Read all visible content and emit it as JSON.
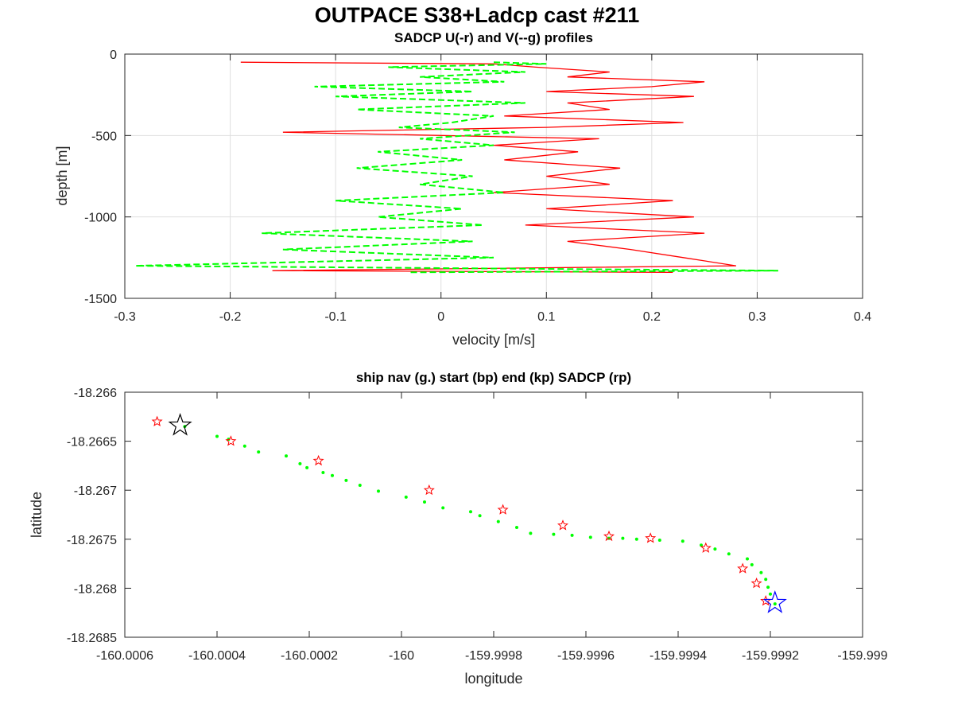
{
  "figure": {
    "title": "OUTPACE S38+Ladcp cast #211"
  },
  "chart_data": [
    {
      "type": "line",
      "title": "SADCP U(-r) and V(--g) profiles",
      "xlabel": "velocity [m/s]",
      "ylabel": "depth [m]",
      "xlim": [
        -0.3,
        0.4
      ],
      "ylim": [
        -1500,
        0
      ],
      "xticks": [
        -0.3,
        -0.2,
        -0.1,
        0,
        0.1,
        0.2,
        0.3,
        0.4
      ],
      "xtick_labels": [
        "-0.3",
        "-0.2",
        "-0.1",
        "0",
        "0.1",
        "0.2",
        "0.3",
        "0.4"
      ],
      "yticks": [
        0,
        -500,
        -1000,
        -1500
      ],
      "ytick_labels": [
        "0",
        "-500",
        "-1000",
        "-1500"
      ],
      "grid": true,
      "series": [
        {
          "color": "#ff0000",
          "style": "solid",
          "depth": [
            -50,
            -60,
            -80,
            -110,
            -140,
            -170,
            -200,
            -230,
            -260,
            -300,
            -340,
            -380,
            -420,
            -450,
            -480,
            -520,
            -560,
            -600,
            -650,
            -700,
            -750,
            -800,
            -850,
            -900,
            -950,
            -1000,
            -1050,
            -1100,
            -1150,
            -1200,
            -1250,
            -1300,
            -1330,
            -1340
          ],
          "values": [
            -0.19,
            0.05,
            0.09,
            0.16,
            0.12,
            0.25,
            0.2,
            0.1,
            0.24,
            0.12,
            0.16,
            0.06,
            0.23,
            0.1,
            -0.15,
            0.15,
            0.05,
            0.13,
            0.06,
            0.17,
            0.1,
            0.16,
            0.05,
            0.22,
            0.1,
            0.24,
            0.08,
            0.25,
            0.12,
            0.18,
            0.23,
            0.28,
            -0.16,
            0.22
          ]
        },
        {
          "color": "#00ff00",
          "style": "dashed",
          "depth": [
            -50,
            -60,
            -80,
            -110,
            -140,
            -170,
            -200,
            -230,
            -260,
            -300,
            -340,
            -380,
            -420,
            -450,
            -480,
            -520,
            -560,
            -600,
            -650,
            -700,
            -750,
            -800,
            -850,
            -900,
            -950,
            -1000,
            -1050,
            -1100,
            -1150,
            -1200,
            -1250,
            -1300,
            -1330,
            -1340
          ],
          "values": [
            0.05,
            0.1,
            -0.05,
            0.08,
            -0.02,
            0.06,
            -0.12,
            0.03,
            -0.1,
            0.08,
            -0.08,
            0.05,
            0.01,
            -0.04,
            0.07,
            -0.02,
            0.05,
            -0.06,
            0.02,
            -0.08,
            0.03,
            -0.02,
            0.06,
            -0.1,
            0.02,
            -0.06,
            0.04,
            -0.17,
            0.03,
            -0.15,
            0.05,
            -0.29,
            0.32,
            -0.03
          ]
        }
      ]
    },
    {
      "type": "scatter",
      "title": "ship nav (g.) start (bp) end (kp) SADCP (rp)",
      "xlabel": "longitude",
      "ylabel": "latitude",
      "xlim": [
        -160.0006,
        -159.999
      ],
      "ylim": [
        -18.2685,
        -18.266
      ],
      "xticks": [
        -160.0006,
        -160.0004,
        -160.0002,
        -160.0,
        -159.9998,
        -159.9996,
        -159.9994,
        -159.9992,
        -159.999
      ],
      "xtick_labels": [
        "-160.0006",
        "-160.0004",
        "-160.0002",
        "-160",
        "-159.9998",
        "-159.9996",
        "-159.9994",
        "-159.9992",
        "-159.999"
      ],
      "yticks": [
        -18.266,
        -18.2665,
        -18.267,
        -18.2675,
        -18.268,
        -18.2685
      ],
      "ytick_labels": [
        "-18.266",
        "-18.2665",
        "-18.267",
        "-18.2675",
        "-18.268",
        "-18.2685"
      ],
      "grid": false,
      "series": [
        {
          "color": "#00ff00",
          "marker": "dot",
          "x": [
            -160.00047,
            -160.0004,
            -160.000375,
            -160.00034,
            -160.00031,
            -160.00025,
            -160.00022,
            -160.000205,
            -160.00017,
            -160.00015,
            -160.00012,
            -160.00009,
            -160.00005,
            -159.99999,
            -159.99995,
            -159.99991,
            -159.99985,
            -159.99983,
            -159.99979,
            -159.99975,
            -159.99972,
            -159.99967,
            -159.99963,
            -159.99959,
            -159.99955,
            -159.99952,
            -159.99949,
            -159.99944,
            -159.99939,
            -159.99935,
            -159.99932,
            -159.99929,
            -159.99925,
            -159.99924,
            -159.99922,
            -159.99921,
            -159.999205,
            -159.9992,
            -159.99919
          ],
          "y": [
            -18.26635,
            -18.26645,
            -18.26648,
            -18.26655,
            -18.26661,
            -18.26665,
            -18.26673,
            -18.26677,
            -18.26682,
            -18.26685,
            -18.2669,
            -18.26695,
            -18.26701,
            -18.26707,
            -18.26712,
            -18.26718,
            -18.26722,
            -18.26726,
            -18.26732,
            -18.26738,
            -18.26744,
            -18.26745,
            -18.26746,
            -18.26748,
            -18.26749,
            -18.26749,
            -18.2675,
            -18.26751,
            -18.26752,
            -18.26756,
            -18.2676,
            -18.26765,
            -18.2677,
            -18.26776,
            -18.26784,
            -18.26791,
            -18.26799,
            -18.26806,
            -18.26816
          ]
        },
        {
          "color": "#ff0000",
          "marker": "star",
          "x": [
            -160.00053,
            -160.00037,
            -160.00018,
            -159.99994,
            -159.99978,
            -159.99965,
            -159.99955,
            -159.99946,
            -159.99934,
            -159.99926,
            -159.99923,
            -159.99921
          ],
          "y": [
            -18.2663,
            -18.2665,
            -18.2667,
            -18.267,
            -18.2672,
            -18.26736,
            -18.26747,
            -18.26749,
            -18.26759,
            -18.2678,
            -18.26795,
            -18.26813
          ]
        },
        {
          "color": "#000000",
          "marker": "star-large",
          "x": [
            -160.00048
          ],
          "y": [
            -18.26634
          ]
        },
        {
          "color": "#0000ff",
          "marker": "star-large",
          "x": [
            -159.99919
          ],
          "y": [
            -18.26815
          ]
        }
      ]
    }
  ]
}
